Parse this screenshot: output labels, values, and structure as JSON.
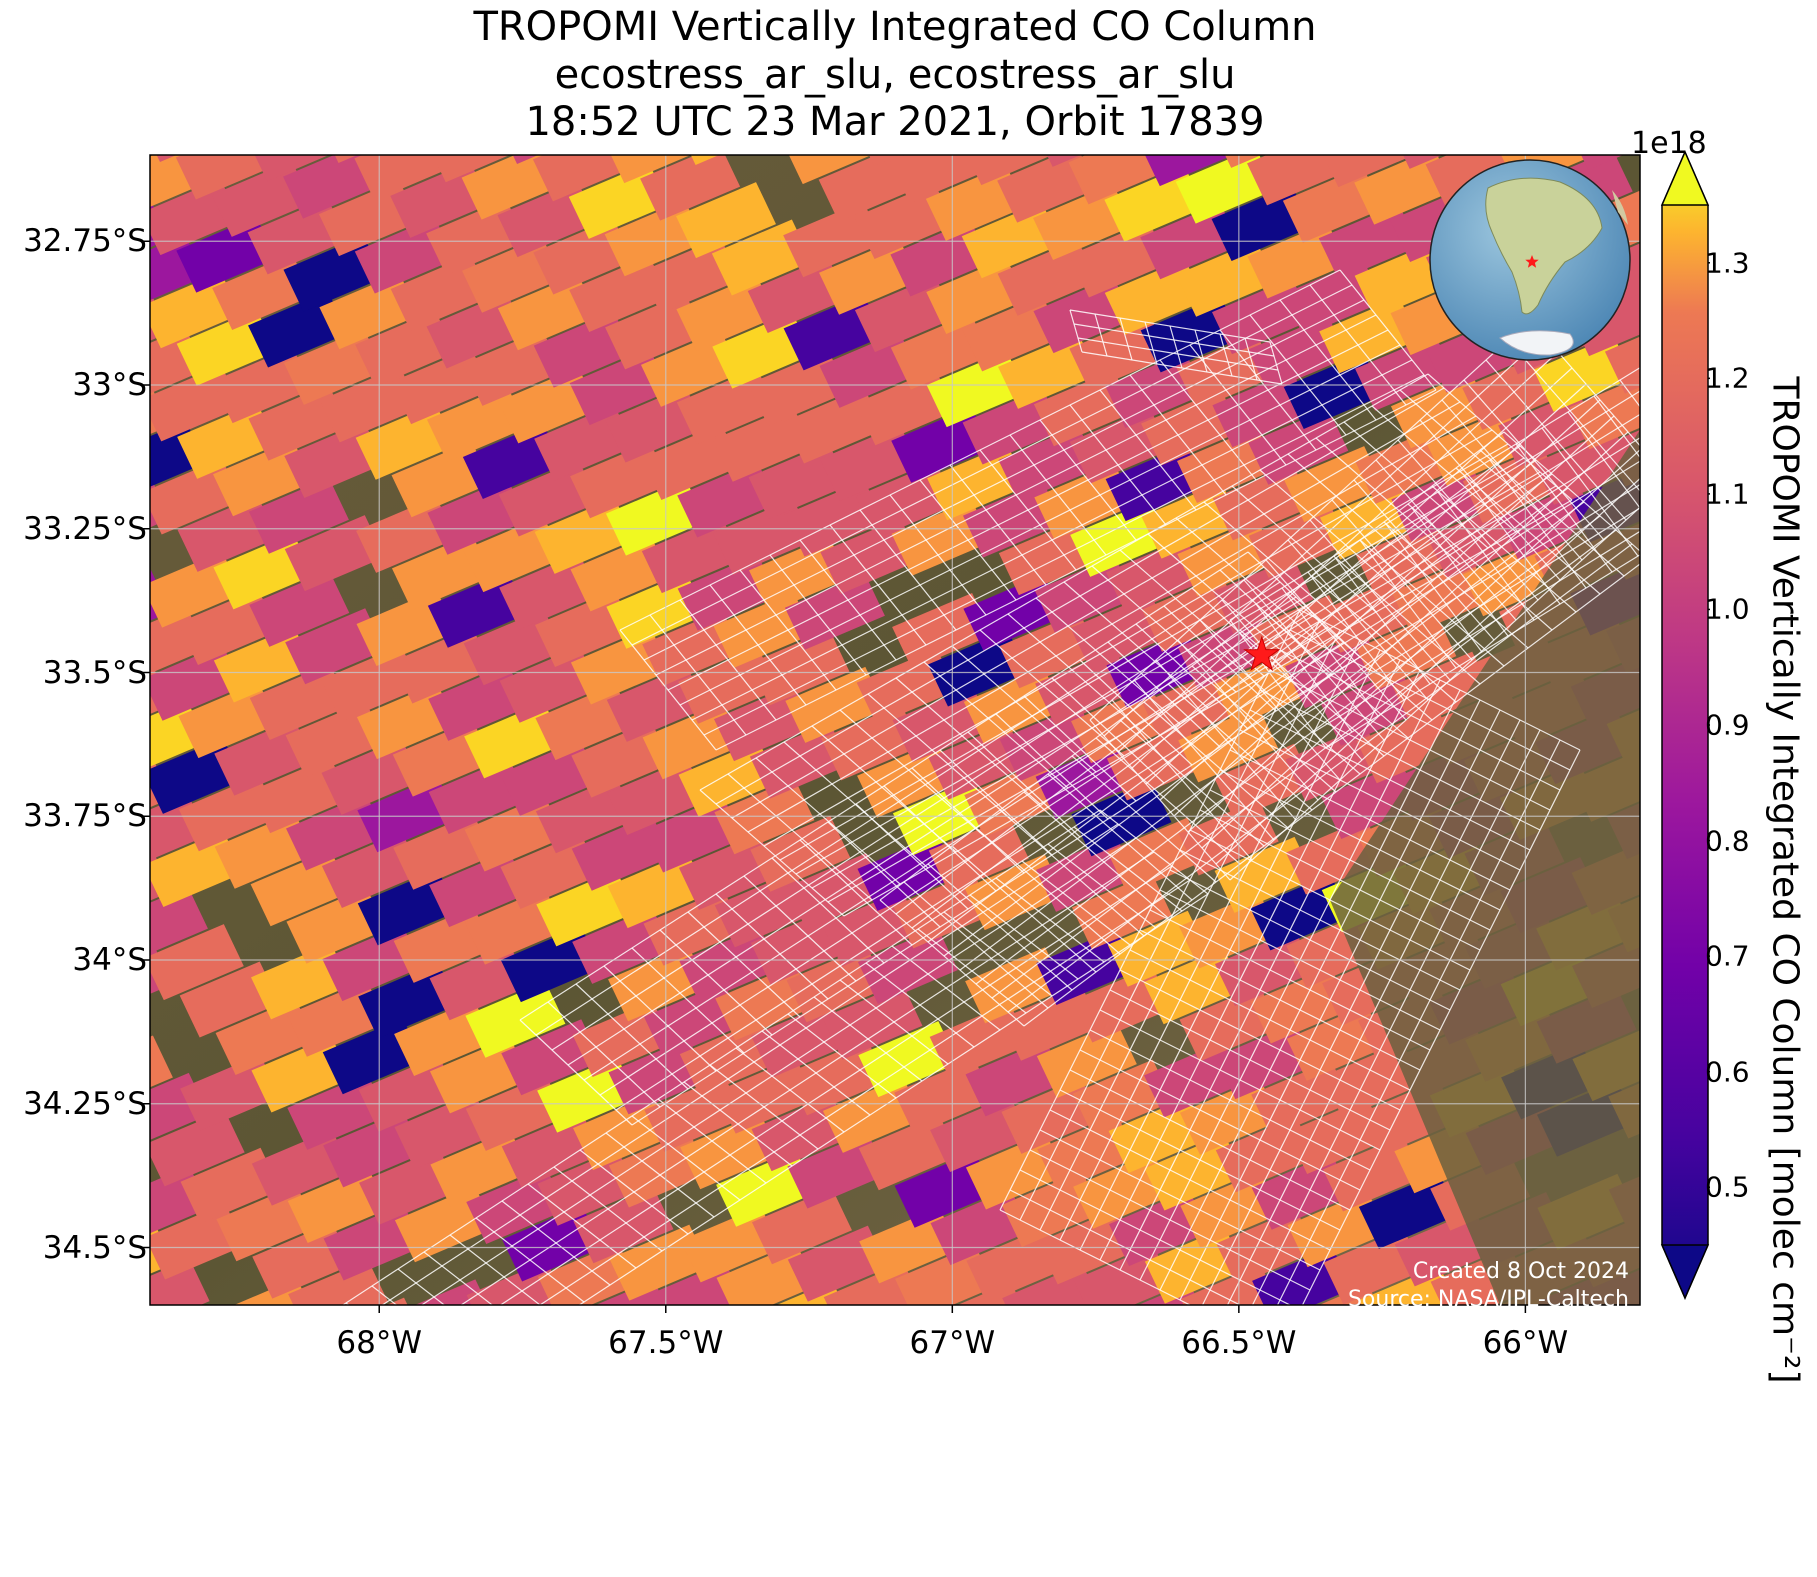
{
  "title": {
    "line1": "TROPOMI Vertically Integrated CO Column",
    "line2": "ecostress_ar_slu, ecostress_ar_slu",
    "line3": "18:52 UTC 23 Mar 2021, Orbit 17839"
  },
  "map": {
    "lat_labels": [
      "32.75°S",
      "33°S",
      "33.25°S",
      "33.5°S",
      "33.75°S",
      "34°S",
      "34.25°S",
      "34.5°S"
    ],
    "lon_labels": [
      "68°W",
      "67.5°W",
      "67°W",
      "66.5°W",
      "66°W"
    ],
    "lat_values": [
      -32.75,
      -33.0,
      -33.25,
      -33.5,
      -33.75,
      -34.0,
      -34.25,
      -34.5
    ],
    "lon_values": [
      -68.0,
      -67.5,
      -67.0,
      -66.5,
      -66.0
    ],
    "extent": {
      "lon_min": -68.4,
      "lon_max": -65.8,
      "lat_min": -34.6,
      "lat_max": -32.6
    },
    "marker": {
      "lon": -66.46,
      "lat": -33.47,
      "symbol": "red-star"
    },
    "overlay": "ECOSTRESS footprint grid (white outlines)",
    "inset_globe": "South America locator with red star"
  },
  "colorbar": {
    "label": "TROPOMI Vertically Integrated CO Column [molec cm⁻²]",
    "exponent": "1e18",
    "ticks": [
      "0.5",
      "0.6",
      "0.7",
      "0.8",
      "0.9",
      "1.0",
      "1.1",
      "1.2",
      "1.3"
    ],
    "tick_values": [
      0.5,
      0.6,
      0.7,
      0.8,
      0.9,
      1.0,
      1.1,
      1.2,
      1.3
    ],
    "range": [
      0.45,
      1.35
    ],
    "colormap": "plasma",
    "extend": "both"
  },
  "credits": {
    "created": "Created 8 Oct 2024",
    "source": "Source: NASA/JPL-Caltech"
  }
}
